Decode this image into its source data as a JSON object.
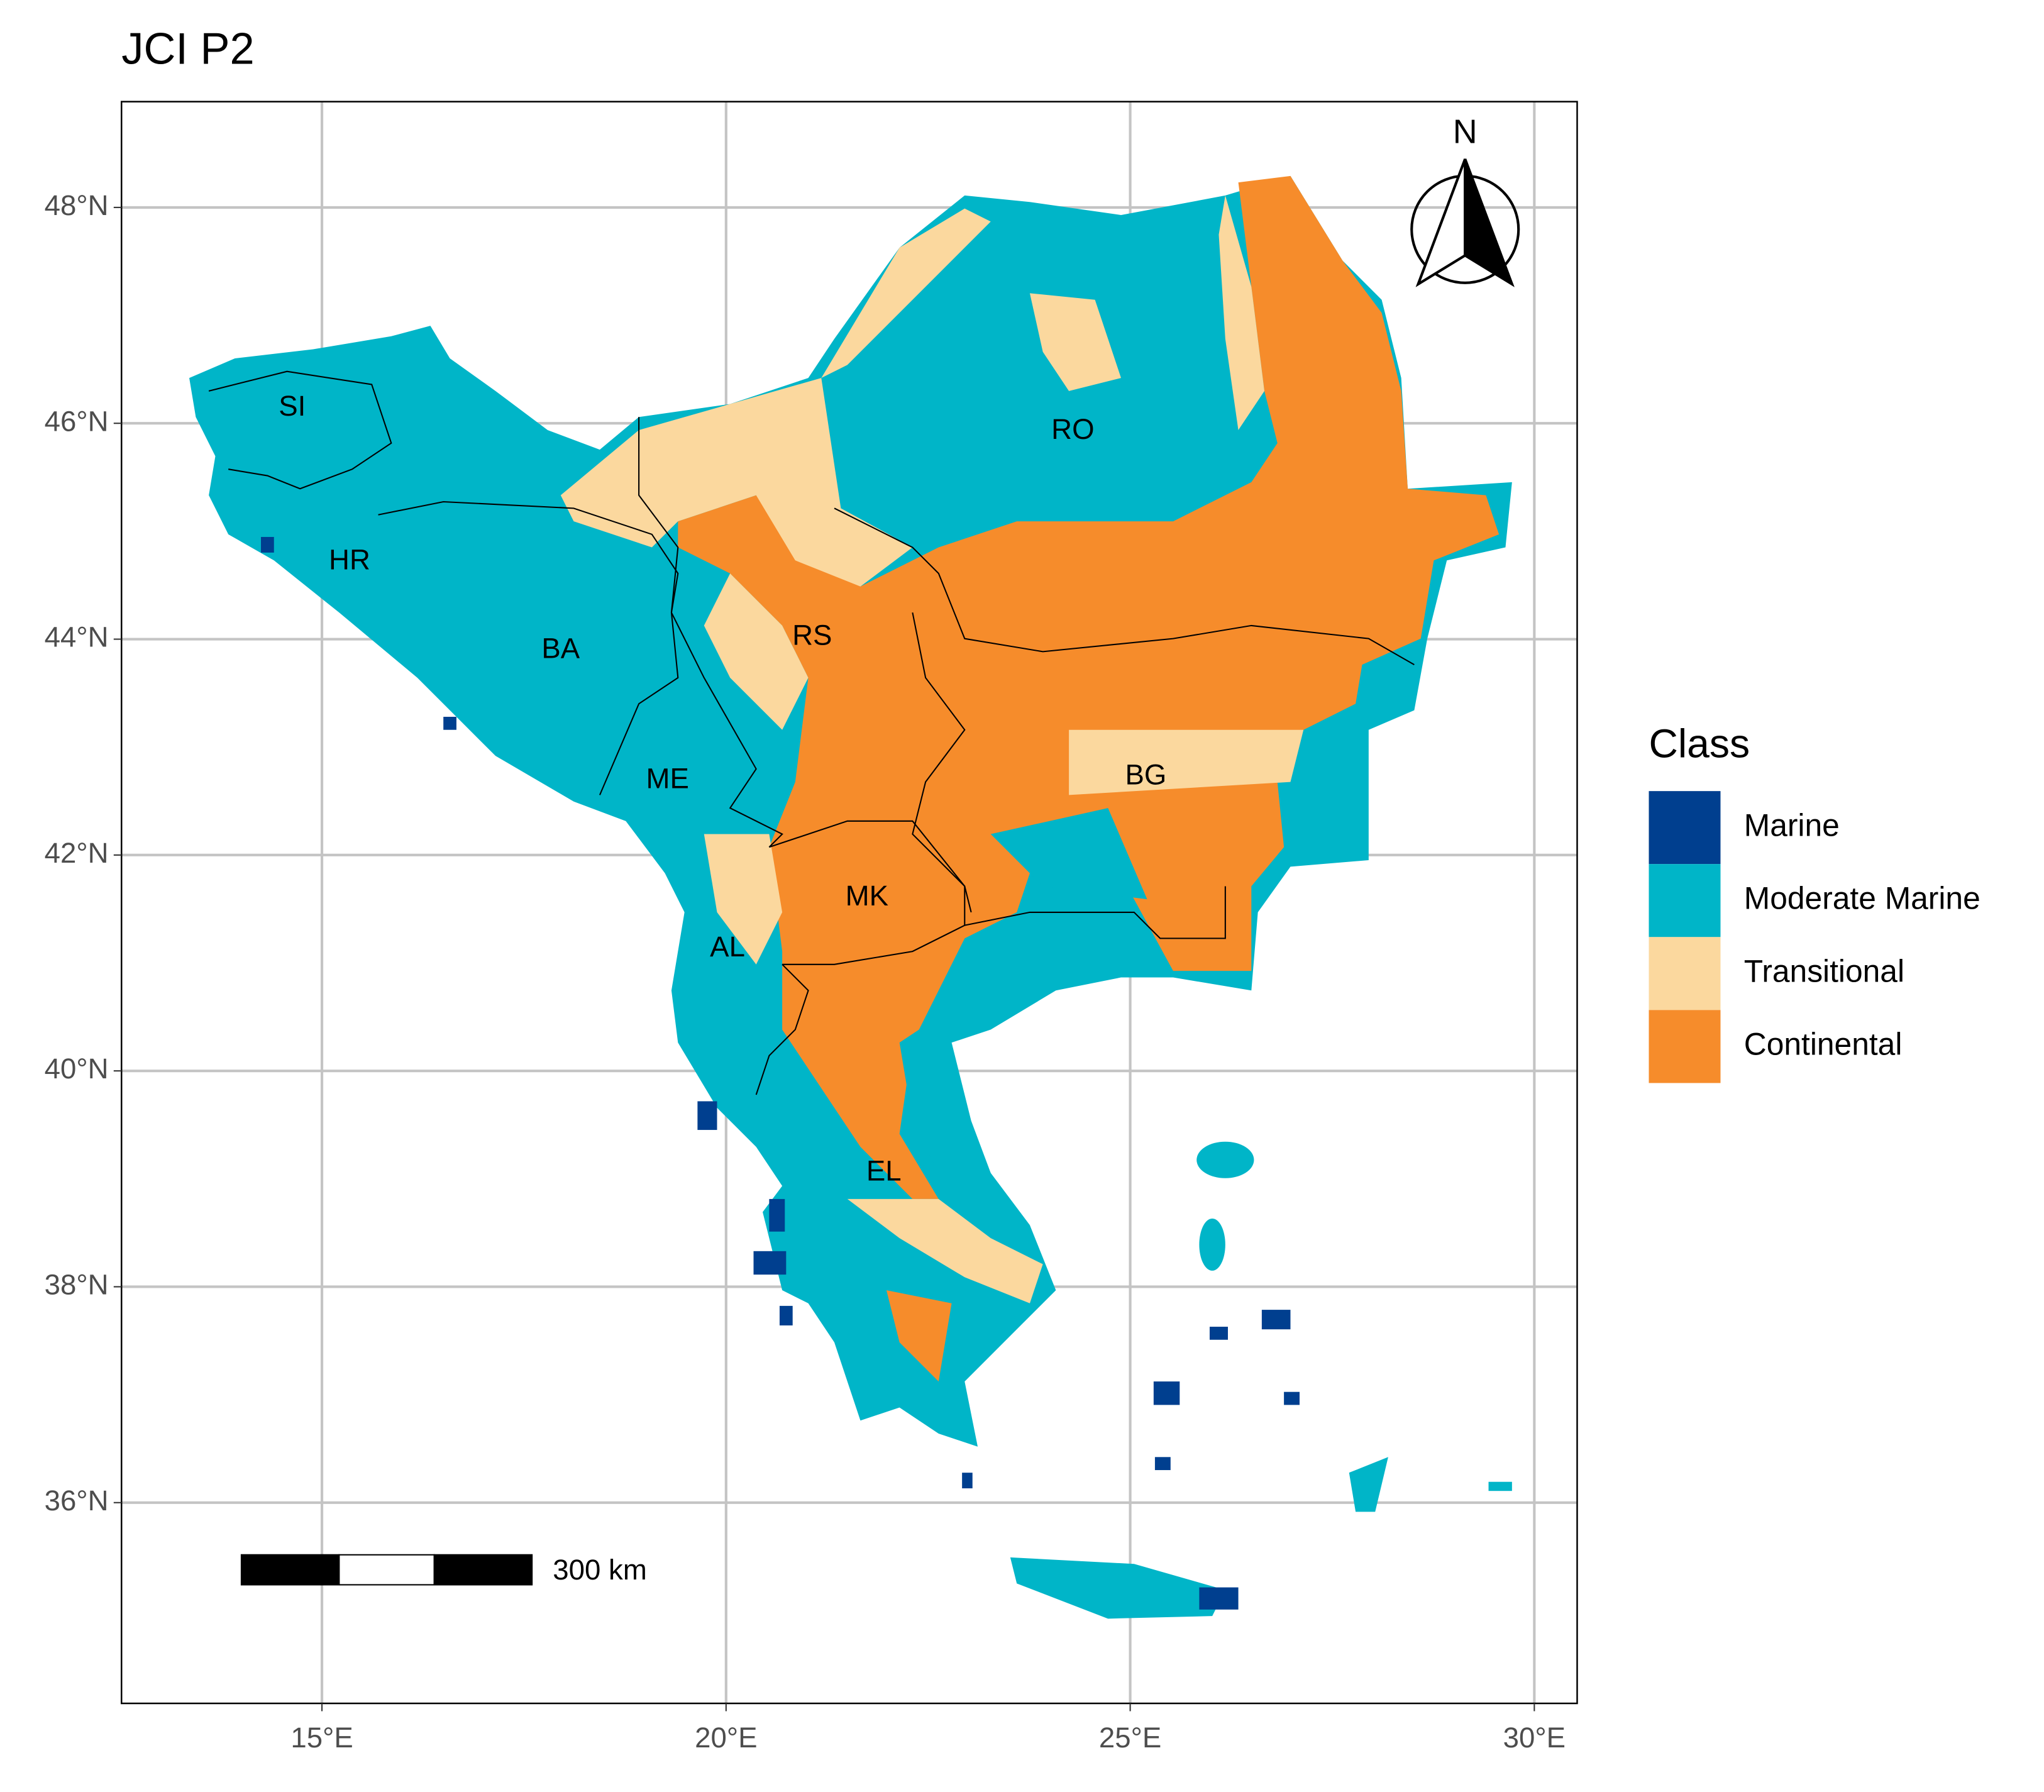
{
  "title": "JCI P2",
  "axes": {
    "xlim": [
      12.52,
      30.53
    ],
    "ylim": [
      34.14,
      48.98
    ],
    "xticks": [
      {
        "value": 15,
        "label": "15°E"
      },
      {
        "value": 20,
        "label": "20°E"
      },
      {
        "value": 25,
        "label": "25°E"
      },
      {
        "value": 30,
        "label": "30°E"
      }
    ],
    "yticks": [
      {
        "value": 36,
        "label": "36°N"
      },
      {
        "value": 38,
        "label": "38°N"
      },
      {
        "value": 40,
        "label": "40°N"
      },
      {
        "value": 42,
        "label": "42°N"
      },
      {
        "value": 44,
        "label": "44°N"
      },
      {
        "value": 46,
        "label": "46°N"
      },
      {
        "value": 48,
        "label": "48°N"
      }
    ],
    "grid": true
  },
  "legend": {
    "title": "Class",
    "position": "right",
    "items": [
      {
        "name": "Marine",
        "color": "#003f8f"
      },
      {
        "name": "Moderate Marine",
        "color": "#00b5c8"
      },
      {
        "name": "Transitional",
        "color": "#fbd89e"
      },
      {
        "name": "Continental",
        "color": "#f68c2b"
      }
    ]
  },
  "regions": [
    "SI",
    "HR",
    "BA",
    "RS",
    "RO",
    "ME",
    "BG",
    "MK",
    "AL",
    "EL"
  ],
  "north_arrow": "N",
  "scale_bar": "300 km"
}
